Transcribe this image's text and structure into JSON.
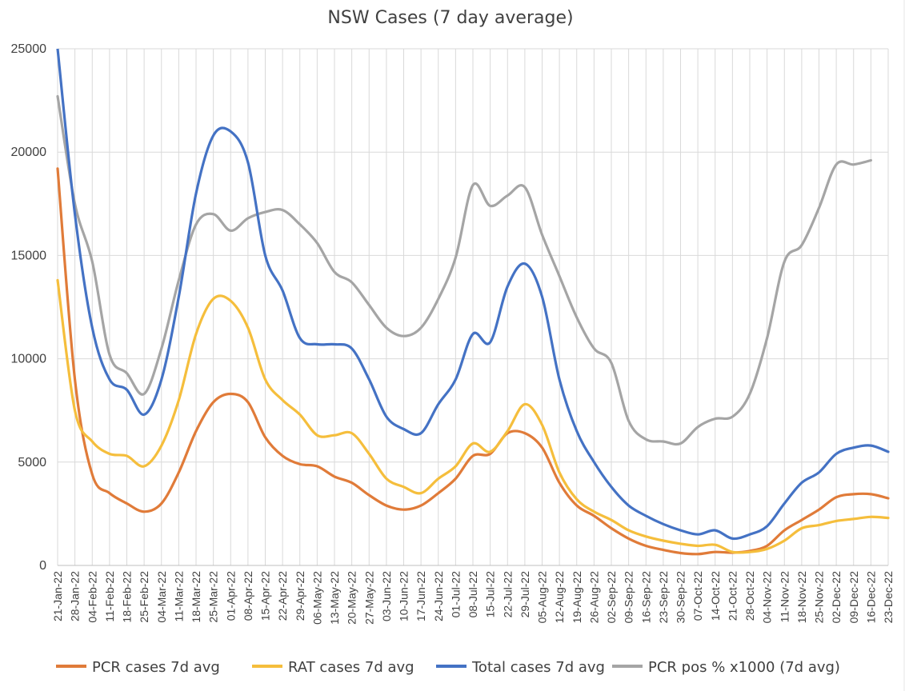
{
  "chart_data": {
    "type": "line",
    "title": "NSW Cases (7 day average)",
    "xlabel": "",
    "ylabel": "",
    "ylim": [
      0,
      25000
    ],
    "yticks": [
      0,
      5000,
      10000,
      15000,
      20000,
      25000
    ],
    "grid": true,
    "legend_position": "bottom",
    "categories": [
      "21-Jan-22",
      "28-Jan-22",
      "04-Feb-22",
      "11-Feb-22",
      "18-Feb-22",
      "25-Feb-22",
      "04-Mar-22",
      "11-Mar-22",
      "18-Mar-22",
      "25-Mar-22",
      "01-Apr-22",
      "08-Apr-22",
      "15-Apr-22",
      "22-Apr-22",
      "29-Apr-22",
      "06-May-22",
      "13-May-22",
      "20-May-22",
      "27-May-22",
      "03-Jun-22",
      "10-Jun-22",
      "17-Jun-22",
      "24-Jun-22",
      "01-Jul-22",
      "08-Jul-22",
      "15-Jul-22",
      "22-Jul-22",
      "29-Jul-22",
      "05-Aug-22",
      "12-Aug-22",
      "19-Aug-22",
      "26-Aug-22",
      "02-Sep-22",
      "09-Sep-22",
      "16-Sep-22",
      "23-Sep-22",
      "30-Sep-22",
      "07-Oct-22",
      "14-Oct-22",
      "21-Oct-22",
      "28-Oct-22",
      "04-Nov-22",
      "11-Nov-22",
      "18-Nov-22",
      "25-Nov-22",
      "02-Dec-22",
      "09-Dec-22",
      "16-Dec-22",
      "23-Dec-22"
    ],
    "series": [
      {
        "name": "PCR cases 7d avg",
        "color": "#e07b39",
        "values": [
          19200,
          9000,
          4400,
          3500,
          3000,
          2600,
          3000,
          4500,
          6500,
          7900,
          8300,
          7900,
          6200,
          5300,
          4900,
          4800,
          4300,
          4000,
          3400,
          2900,
          2700,
          2900,
          3500,
          4200,
          5300,
          5400,
          6400,
          6400,
          5700,
          4000,
          2900,
          2400,
          1800,
          1300,
          950,
          750,
          600,
          550,
          650,
          620,
          700,
          950,
          1700,
          2200,
          2700,
          3300,
          3450,
          3450,
          3250
        ]
      },
      {
        "name": "RAT cases 7d avg",
        "color": "#f5be3c",
        "values": [
          13800,
          7500,
          6000,
          5400,
          5300,
          4800,
          5800,
          8000,
          11200,
          12900,
          12800,
          11500,
          9000,
          8000,
          7300,
          6300,
          6300,
          6400,
          5400,
          4200,
          3800,
          3500,
          4200,
          4800,
          5900,
          5500,
          6500,
          7800,
          6800,
          4500,
          3200,
          2600,
          2200,
          1700,
          1400,
          1200,
          1050,
          950,
          1000,
          650,
          650,
          800,
          1200,
          1800,
          1950,
          2150,
          2250,
          2350,
          2300
        ]
      },
      {
        "name": "Total cases 7d avg",
        "color": "#4472c4",
        "values": [
          25000,
          17000,
          11500,
          9000,
          8500,
          7300,
          9000,
          13000,
          18000,
          20800,
          21000,
          19500,
          15000,
          13300,
          11000,
          10700,
          10700,
          10500,
          9000,
          7200,
          6600,
          6400,
          7800,
          9000,
          11200,
          10800,
          13500,
          14600,
          13000,
          9000,
          6500,
          5000,
          3800,
          2900,
          2400,
          2000,
          1700,
          1500,
          1700,
          1300,
          1500,
          1900,
          3000,
          4000,
          4500,
          5400,
          5700,
          5800,
          5500
        ]
      },
      {
        "name": "PCR pos % x1000 (7d avg)",
        "color": "#a5a5a5",
        "values": [
          22700,
          17500,
          14700,
          10200,
          9300,
          8300,
          10500,
          13800,
          16500,
          17000,
          16200,
          16800,
          17100,
          17200,
          16500,
          15600,
          14200,
          13700,
          12600,
          11500,
          11100,
          11500,
          12900,
          14900,
          18400,
          17400,
          17900,
          18300,
          16000,
          14000,
          12000,
          10500,
          9800,
          7000,
          6100,
          6000,
          5900,
          6700,
          7100,
          7200,
          8300,
          11000,
          14700,
          15500,
          17300,
          19400,
          19400,
          19600,
          null
        ]
      }
    ]
  }
}
